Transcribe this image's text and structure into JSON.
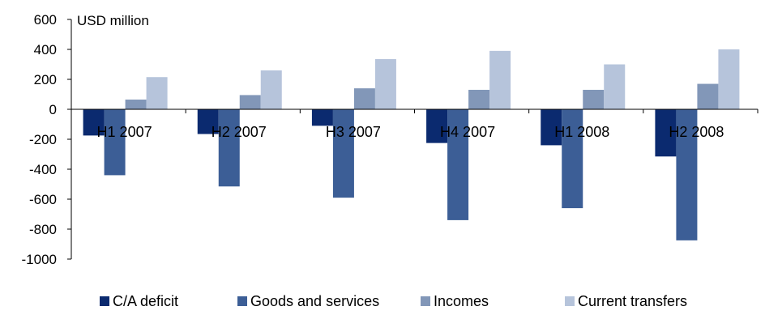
{
  "chart_data": {
    "type": "bar",
    "title": "",
    "xlabel": "",
    "ylabel": "",
    "unit_label": "USD million",
    "categories": [
      "H1 2007",
      "H2 2007",
      "H3 2007",
      "H4 2007",
      "H1 2008",
      "H2 2008"
    ],
    "series": [
      {
        "name": "C/A deficit",
        "color": "#0b2a6f",
        "values": [
          -175,
          -165,
          -110,
          -225,
          -240,
          -315
        ]
      },
      {
        "name": "Goods and services",
        "color": "#3c5e96",
        "values": [
          -440,
          -515,
          -590,
          -740,
          -660,
          -875
        ]
      },
      {
        "name": "Incomes",
        "color": "#8297b8",
        "values": [
          65,
          95,
          140,
          130,
          130,
          170
        ]
      },
      {
        "name": "Current transfers",
        "color": "#b6c4db",
        "values": [
          215,
          260,
          335,
          390,
          300,
          400
        ]
      }
    ],
    "ylim": [
      -1000,
      600
    ],
    "yticks": [
      600,
      400,
      200,
      0,
      -200,
      -400,
      -600,
      -800,
      -1000
    ],
    "ytick_labels": [
      "600",
      "400",
      "200",
      "0",
      "-200",
      "-400",
      "-600",
      "-800",
      "-1000"
    ],
    "grid": false,
    "legend_position": "bottom"
  }
}
